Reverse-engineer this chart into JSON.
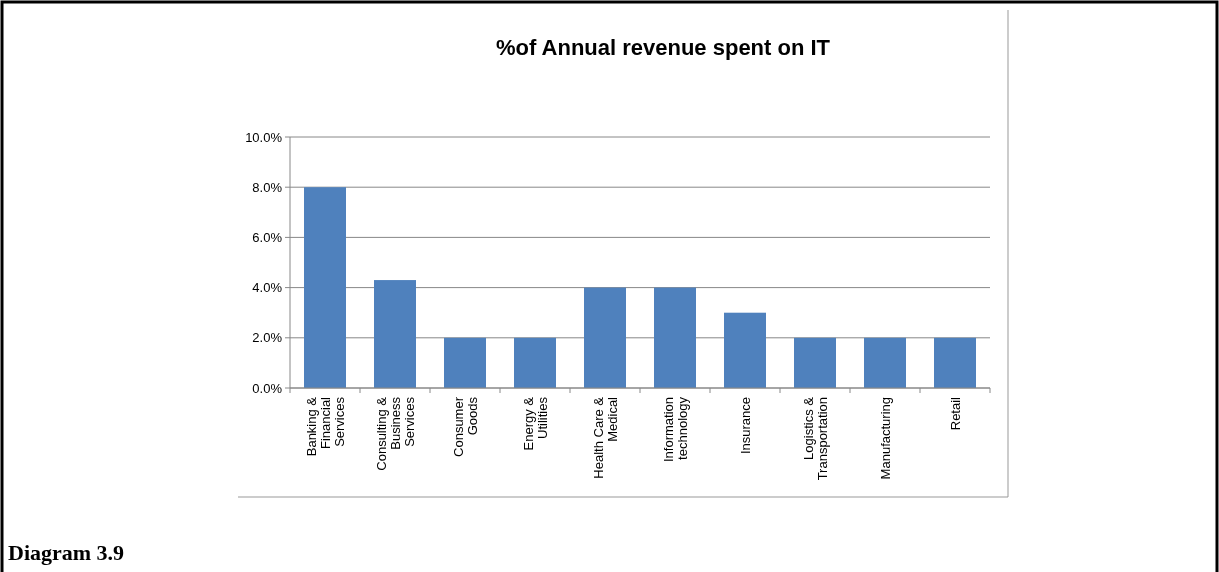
{
  "chart_data": {
    "type": "bar",
    "title": "%of Annual revenue spent on IT",
    "categories": [
      "Banking & Financial Services",
      "Consulting & Business Services",
      "Consumer Goods",
      "Energy & Utilities",
      "Health Care & Medical",
      "Information technology",
      "Insurance",
      "Logistics & Transportation",
      "Manufacturing",
      "Retail"
    ],
    "values": [
      8.0,
      4.3,
      2.0,
      2.0,
      4.0,
      4.0,
      3.0,
      2.0,
      2.0,
      2.0
    ],
    "color": "#4f81bd",
    "ylim": [
      0,
      10
    ],
    "yticks": [
      {
        "value": 0,
        "label": "0.0%"
      },
      {
        "value": 2,
        "label": "2.0%"
      },
      {
        "value": 4,
        "label": "4.0%"
      },
      {
        "value": 6,
        "label": "6.0%"
      },
      {
        "value": 8,
        "label": "8.0%"
      },
      {
        "value": 10,
        "label": "10.0%"
      }
    ],
    "grid": "y",
    "annotations": [
      "Diagram 3.9"
    ]
  }
}
